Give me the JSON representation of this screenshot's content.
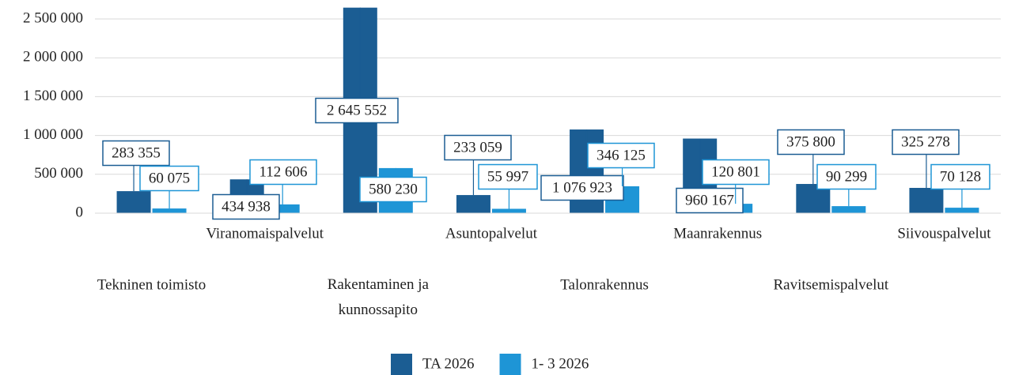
{
  "chart_data": {
    "type": "bar",
    "categories": [
      "Tekninen toimisto",
      "Viranomaispalvelut",
      "Rakentaminen ja kunnossapito",
      "Asuntopalvelut",
      "Talonrakennus",
      "Maanrakennus",
      "Ravitsemispalvelut",
      "Siivouspalvelut"
    ],
    "series": [
      {
        "name": "TA 2026",
        "color": "#1b5d93",
        "values": [
          283355,
          434938,
          2645552,
          233059,
          1076923,
          960167,
          375800,
          325278
        ],
        "value_labels": [
          "283 355",
          "434 938",
          "2 645 552",
          "233 059",
          "1 076 923",
          "960 167",
          "375 800",
          "325 278"
        ]
      },
      {
        "name": "1- 3 2026",
        "color": "#1e95d6",
        "values": [
          60075,
          112606,
          580230,
          55997,
          346125,
          120801,
          90299,
          70128
        ],
        "value_labels": [
          "60 075",
          "112 606",
          "580 230",
          "55 997",
          "346 125",
          "120 801",
          "90 299",
          "70 128"
        ]
      }
    ],
    "ylim": [
      0,
      2700000
    ],
    "yticks": [
      {
        "value": 0,
        "label": "0"
      },
      {
        "value": 500000,
        "label": "500 000"
      },
      {
        "value": 1000000,
        "label": "1 000 000"
      },
      {
        "value": 1500000,
        "label": "1 500 000"
      },
      {
        "value": 2000000,
        "label": "2 000 000"
      },
      {
        "value": 2500000,
        "label": "2 500 000"
      }
    ],
    "grid": true,
    "legend": "bottom"
  }
}
